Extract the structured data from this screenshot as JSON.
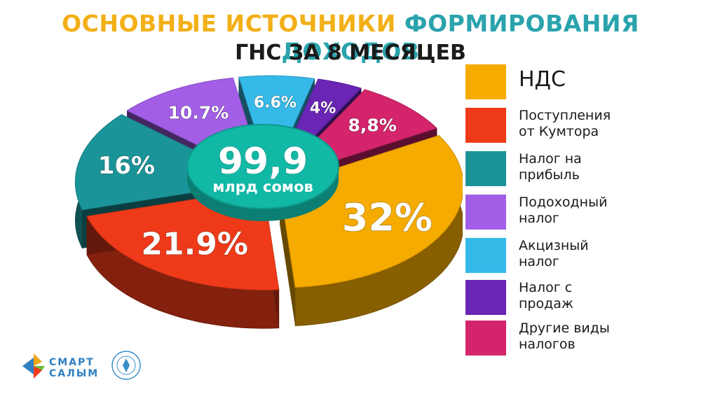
{
  "header": {
    "title_part1": "ОСНОВНЫЕ ИСТОЧНИКИ",
    "title_part2": "ФОРМИРОВАНИЯ ДОХОДОВ",
    "subtitle": "ГНС ЗА 8 МЕСЯЦЕВ"
  },
  "center": {
    "value": "99,9",
    "unit": "млрд сомов",
    "color": "#12b8a6"
  },
  "chart_data": {
    "type": "pie",
    "title": "ОСНОВНЫЕ ИСТОЧНИКИ ФОРМИРОВАНИЯ ДОХОДОВ ГНС ЗА 8 МЕСЯЦЕВ",
    "total": "99,9 млрд сомов",
    "slices": [
      {
        "legend_line1": "НДС",
        "legend_line2": "",
        "value": 32,
        "label": "32%",
        "color": "#f6ab00"
      },
      {
        "legend_line1": "Поступления",
        "legend_line2": "от Кумтора",
        "value": 21.9,
        "label": "21.9%",
        "color": "#ef3a1a"
      },
      {
        "legend_line1": "Налог на",
        "legend_line2": "прибыль",
        "value": 16,
        "label": "16%",
        "color": "#1b9499"
      },
      {
        "legend_line1": "Подоходный",
        "legend_line2": "налог",
        "value": 10.7,
        "label": "10.7%",
        "color": "#a25ee6"
      },
      {
        "legend_line1": "Акцизный",
        "legend_line2": "налог",
        "value": 6.6,
        "label": "6.6%",
        "color": "#35b9e9"
      },
      {
        "legend_line1": "Налог с",
        "legend_line2": "продаж",
        "value": 4,
        "label": "4%",
        "color": "#6a25b5"
      },
      {
        "legend_line1": "Другие виды",
        "legend_line2": "налогов",
        "value": 8.8,
        "label": "8,8%",
        "color": "#d4246b"
      }
    ],
    "legend_position": "right"
  },
  "branding": {
    "logo_line1": "СМАРТ",
    "logo_line2": "САЛЫМ",
    "seal_icon": "state-tax-service-seal-icon"
  }
}
